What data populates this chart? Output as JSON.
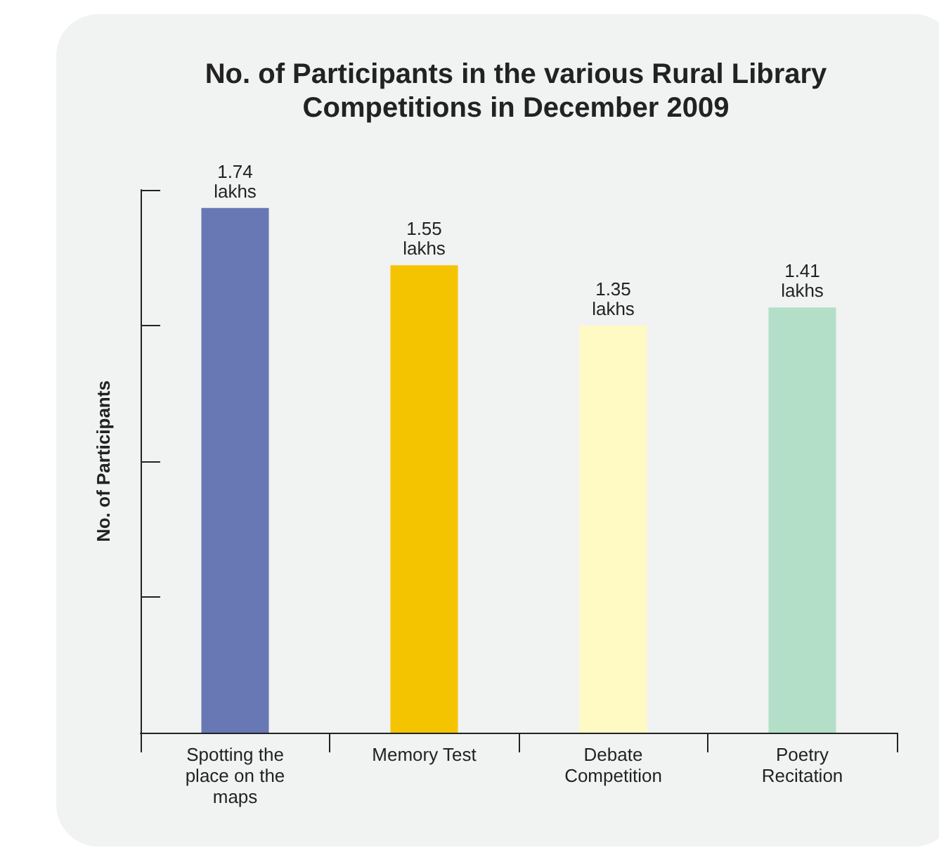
{
  "chart_data": {
    "type": "bar",
    "title": "No. of Participants in the various Rural Library Competitions in December 2009",
    "ylabel": "No. of Participants",
    "categories": [
      "Spotting the place on the maps",
      "Memory Test",
      "Debate Competition",
      "Poetry Recitation"
    ],
    "values": [
      1.74,
      1.55,
      1.35,
      1.41
    ],
    "colors": [
      "#6878b4",
      "#f5c400",
      "#fff9c4",
      "#b3dfc8"
    ],
    "value_labels": [
      "1.74 lakhs",
      "1.55 lakhs",
      "1.35 lakhs",
      "1.41 lakhs"
    ],
    "ylim": [
      0,
      1.8
    ],
    "yticks": [
      {
        "value": 0,
        "label": null
      },
      {
        "value": 0.45,
        "label": null
      },
      {
        "value": 0.9,
        "label": null
      },
      {
        "value": 1.35,
        "label": null
      },
      {
        "value": 1.8,
        "label": null
      }
    ],
    "tick_labels": "x",
    "grid": false
  }
}
